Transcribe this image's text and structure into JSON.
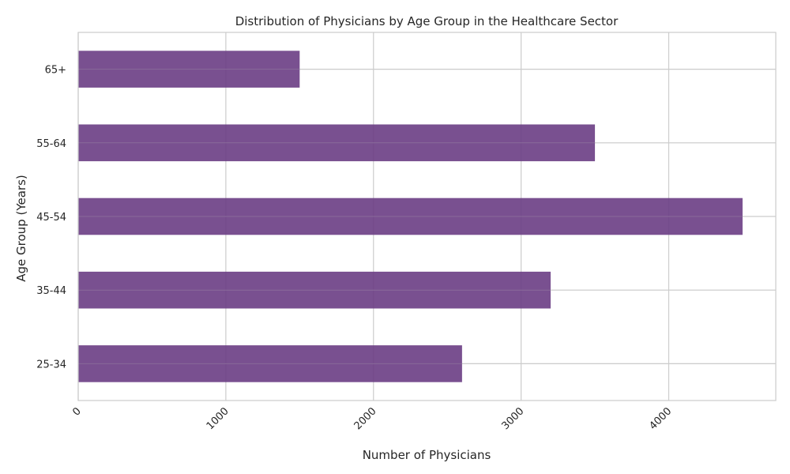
{
  "chart_data": {
    "type": "bar",
    "orientation": "horizontal",
    "title": "Distribution of Physicians by Age Group in the Healthcare Sector",
    "xlabel": "Number of Physicians",
    "ylabel": "Age Group (Years)",
    "categories": [
      "25-34",
      "35-44",
      "45-54",
      "55-64",
      "65+"
    ],
    "values": [
      2600,
      3200,
      4500,
      3500,
      1500
    ],
    "xlim": [
      0,
      4725
    ],
    "xticks": [
      0,
      1000,
      2000,
      3000,
      4000
    ],
    "x_tick_rotation_deg": 45,
    "grid": true,
    "bar_color": "#6a3d84",
    "grid_color": "#cccccc",
    "background_color": "#ffffff"
  }
}
